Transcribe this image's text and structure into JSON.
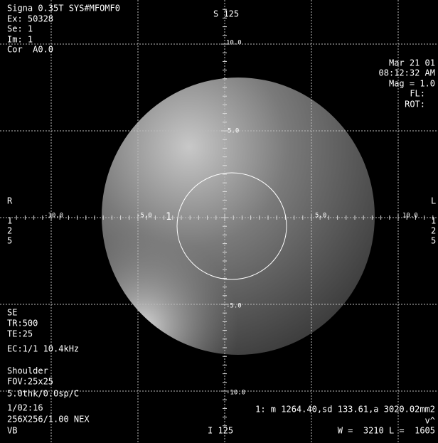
{
  "header": {
    "top_left": [
      "Signa 0.35T SYS#MFOMF0",
      "Ex: 50328",
      "Se: 1",
      "Im: 1",
      "Cor  A0.0"
    ],
    "top_center": "S 125",
    "top_right": [
      "Mar 21 01",
      "08:12:32 AM",
      "Mag = 1.0",
      "FL:",
      "ROT:"
    ]
  },
  "sides": {
    "left": [
      "R",
      "1",
      "2",
      "5"
    ],
    "right": [
      "L",
      "1",
      "2",
      "5"
    ]
  },
  "ruler": {
    "vertical": [
      "10.0",
      "5.0",
      "-5.0",
      "-10.0"
    ],
    "horizontal": [
      "-10.0",
      "-5.0",
      "5.0",
      "10.0"
    ]
  },
  "roi_label": "1",
  "footer": {
    "bottom_left": [
      "SE",
      "TR:500",
      "TE:25",
      "EC:1/1 10.4kHz",
      "Shoulder",
      "FOV:25x25",
      "5.0thk/0.0sp/C",
      "1/02:16",
      "256X256/1.00 NEX",
      "VB"
    ],
    "bottom_center": "I 125",
    "bottom_right": [
      "1: m 1264.40,sd 133.61,a 3020.02mm2",
      "v^",
      "W =  3210 L =  1605"
    ]
  }
}
